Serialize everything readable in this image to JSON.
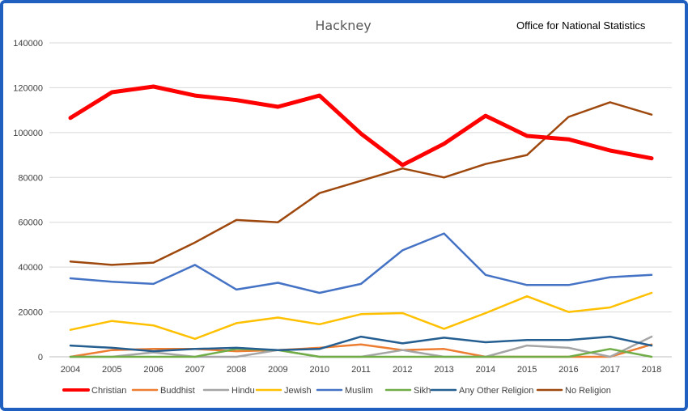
{
  "chart_data": {
    "type": "line",
    "title": "Hackney",
    "source_label": "Office for National Statistics",
    "xlabel": "",
    "ylabel": "",
    "ylim": [
      0,
      140000
    ],
    "y_ticks": [
      0,
      20000,
      40000,
      60000,
      80000,
      100000,
      120000,
      140000
    ],
    "y_tick_labels": [
      "0",
      "20000",
      "40000",
      "60000",
      "80000",
      "100000",
      "120000",
      "140000"
    ],
    "categories": [
      "2004",
      "2005",
      "2006",
      "2007",
      "2008",
      "2009",
      "2010",
      "2011",
      "2012",
      "2013",
      "2014",
      "2015",
      "2016",
      "2017",
      "2018"
    ],
    "grid": "horizontal",
    "legend_position": "bottom",
    "series": [
      {
        "name": "Christian",
        "color": "#ff0000",
        "width": 5,
        "values": [
          106500,
          118000,
          120500,
          116500,
          114500,
          111500,
          116500,
          99500,
          85500,
          95000,
          107500,
          98500,
          97000,
          92000,
          88500
        ]
      },
      {
        "name": "Buddhist",
        "color": "#ed7d31",
        "width": 2.5,
        "values": [
          0,
          3000,
          3500,
          3500,
          2500,
          3000,
          4000,
          5500,
          3000,
          3500,
          0,
          0,
          0,
          0,
          5500
        ]
      },
      {
        "name": "Hindu",
        "color": "#a5a5a5",
        "width": 2.5,
        "values": [
          0,
          0,
          2000,
          0,
          0,
          3000,
          0,
          0,
          3000,
          0,
          0,
          5000,
          4000,
          0,
          9000
        ]
      },
      {
        "name": "Jewish",
        "color": "#ffc000",
        "width": 2.5,
        "values": [
          12000,
          16000,
          14000,
          8000,
          15000,
          17500,
          14500,
          19000,
          19500,
          12500,
          19500,
          27000,
          20000,
          22000,
          28500
        ]
      },
      {
        "name": "Muslim",
        "color": "#4472c4",
        "width": 2.5,
        "values": [
          35000,
          33500,
          32500,
          41000,
          30000,
          33000,
          28500,
          32500,
          47500,
          55000,
          36500,
          32000,
          32000,
          35500,
          36500
        ]
      },
      {
        "name": "Sikh",
        "color": "#70ad47",
        "width": 2.5,
        "values": [
          0,
          0,
          0,
          0,
          3500,
          3000,
          0,
          0,
          0,
          0,
          0,
          0,
          0,
          3500,
          0
        ]
      },
      {
        "name": "Any Other Religion",
        "color": "#255e91",
        "width": 2.5,
        "values": [
          5000,
          4000,
          2500,
          3500,
          4000,
          3000,
          3500,
          9000,
          6000,
          8500,
          6500,
          7500,
          7500,
          9000,
          5000
        ]
      },
      {
        "name": "No Religion",
        "color": "#9e480e",
        "width": 2.5,
        "values": [
          42500,
          41000,
          42000,
          51000,
          61000,
          60000,
          73000,
          78500,
          84000,
          80000,
          86000,
          90000,
          107000,
          113500,
          108000
        ]
      }
    ]
  }
}
